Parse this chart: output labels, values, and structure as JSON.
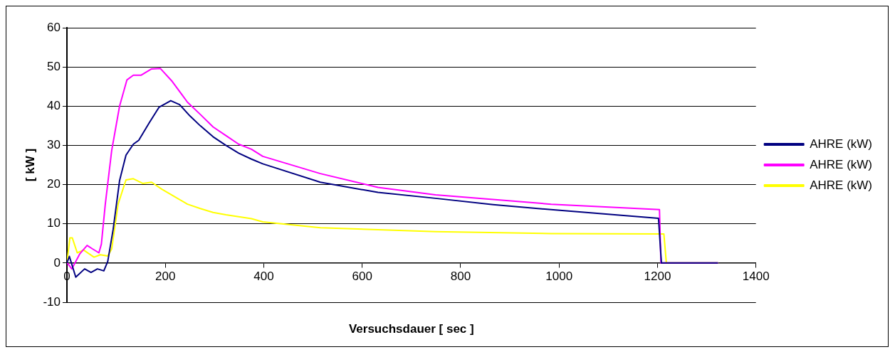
{
  "chart_data": {
    "type": "line",
    "xlabel": "Versuchsdauer [ sec ]",
    "ylabel": "[ kW ]",
    "xlim": [
      0,
      1400
    ],
    "xticks": [
      0,
      200,
      400,
      600,
      800,
      1000,
      1200,
      1400
    ],
    "ylim": [
      -10,
      60
    ],
    "yticks": [
      -10,
      0,
      10,
      20,
      30,
      40,
      50,
      60
    ],
    "grid": "y",
    "legend": "right",
    "marker": "none",
    "line_style": "solid",
    "series": [
      {
        "name": "AHRE (kW)",
        "color": "#000080",
        "x": [
          0,
          5,
          18,
          36,
          49,
          62,
          75,
          83,
          94,
          107,
          120,
          135,
          146,
          167,
          187,
          211,
          229,
          250,
          271,
          297,
          323,
          349,
          375,
          398,
          515,
          632,
          749,
          866,
          984,
          1202,
          1208,
          1323
        ],
        "values": [
          0,
          1.7,
          -3.6,
          -1.5,
          -2.4,
          -1.5,
          -2,
          0.4,
          8.6,
          21,
          27.5,
          30.3,
          31.3,
          35.7,
          39.7,
          41.4,
          40.4,
          37.5,
          35,
          32.2,
          30,
          28,
          26.5,
          25.3,
          20.6,
          18,
          16.5,
          14.9,
          13.6,
          11.4,
          0,
          0
        ]
      },
      {
        "name": "AHRE (kW)",
        "color": "#ff00ff",
        "x": [
          0,
          2,
          10,
          26,
          41,
          52,
          65,
          70,
          78,
          91,
          107,
          122,
          135,
          151,
          172,
          190,
          214,
          245,
          271,
          297,
          323,
          349,
          375,
          398,
          515,
          632,
          749,
          866,
          984,
          1204,
          1207,
          1323
        ],
        "values": [
          0,
          -0.2,
          -1.5,
          2.3,
          4.5,
          3.6,
          2.6,
          4.8,
          15,
          28.7,
          40,
          46.7,
          47.9,
          47.9,
          49.5,
          49.6,
          46.3,
          41,
          37.9,
          34.7,
          32.5,
          30.3,
          29,
          27.2,
          22.8,
          19.3,
          17.4,
          16.2,
          15,
          13.6,
          0,
          0
        ]
      },
      {
        "name": "AHRE (kW)",
        "color": "#ffff00",
        "x": [
          0,
          6,
          11,
          21,
          34,
          55,
          68,
          83,
          91,
          104,
          120,
          135,
          154,
          172,
          193,
          219,
          245,
          271,
          297,
          323,
          375,
          398,
          515,
          632,
          749,
          984,
          1213,
          1218,
          1323
        ],
        "values": [
          0,
          6.4,
          6.4,
          2.6,
          3.3,
          1.5,
          2.1,
          1.8,
          3.6,
          15,
          21.2,
          21.5,
          20.3,
          20.6,
          18.8,
          16.9,
          15,
          13.9,
          12.9,
          12.3,
          11.3,
          10.5,
          9,
          8.5,
          8,
          7.5,
          7.4,
          0,
          0
        ]
      }
    ]
  }
}
